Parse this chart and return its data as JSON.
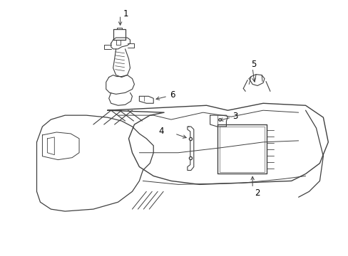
{
  "background_color": "#ffffff",
  "line_color": "#404040",
  "label_color": "#000000",
  "fig_width": 4.89,
  "fig_height": 3.6,
  "dpi": 100,
  "label_fontsize": 8.5
}
